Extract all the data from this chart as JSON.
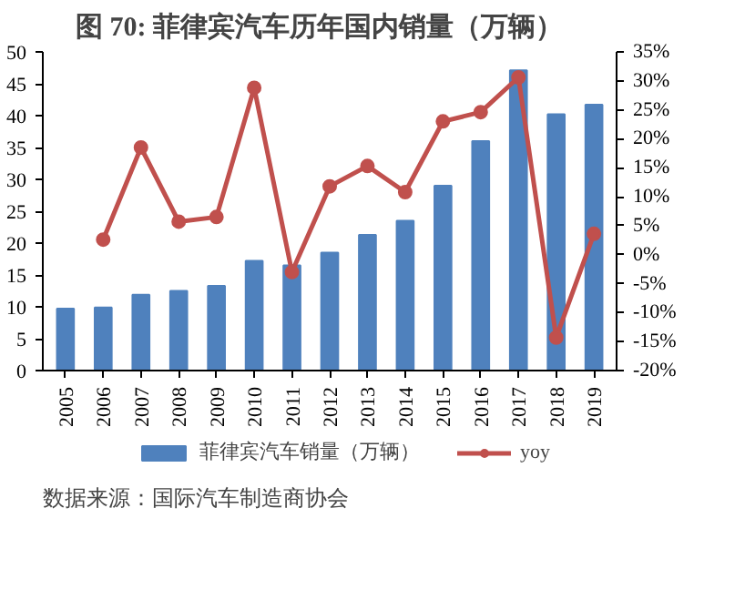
{
  "chart_data": {
    "type": "bar",
    "title": "图 70: 菲律宾汽车历年国内销量（万辆）",
    "categories": [
      "2005",
      "2006",
      "2007",
      "2008",
      "2009",
      "2010",
      "2011",
      "2012",
      "2013",
      "2014",
      "2015",
      "2016",
      "2017",
      "2018",
      "2019"
    ],
    "series": [
      {
        "name": "菲律宾汽车销量（万辆）",
        "color": "#4f81bd",
        "values": [
          9.7,
          9.9,
          11.9,
          12.5,
          13.3,
          17.2,
          16.5,
          18.5,
          21.3,
          23.5,
          29.0,
          36.0,
          47.1,
          40.2,
          41.7
        ]
      },
      {
        "name": "yoy",
        "type": "line",
        "axis": "y2",
        "color": "#c0504d",
        "marker": "circle",
        "values": [
          null,
          2.6,
          18.5,
          5.7,
          6.5,
          28.8,
          -3.0,
          11.8,
          15.3,
          10.8,
          23.0,
          24.6,
          30.6,
          -14.3,
          3.6
        ]
      }
    ],
    "ylim": [
      0,
      50
    ],
    "yticks": [
      0,
      5,
      10,
      15,
      20,
      25,
      30,
      35,
      40,
      45,
      50
    ],
    "y2lim": [
      -20,
      35
    ],
    "y2ticks": [
      {
        "value": -20,
        "label": "-20%"
      },
      {
        "value": -15,
        "label": "-15%"
      },
      {
        "value": -10,
        "label": "-10%"
      },
      {
        "value": -5,
        "label": "-5%"
      },
      {
        "value": 0,
        "label": "0%"
      },
      {
        "value": 5,
        "label": "5%"
      },
      {
        "value": 10,
        "label": "10%"
      },
      {
        "value": 15,
        "label": "15%"
      },
      {
        "value": 20,
        "label": "20%"
      },
      {
        "value": 25,
        "label": "25%"
      },
      {
        "value": 30,
        "label": "30%"
      },
      {
        "value": 35,
        "label": "35%"
      }
    ],
    "grid": false,
    "legend": "bottom",
    "annotations": [
      "数据来源：国际汽车制造商协会"
    ]
  }
}
